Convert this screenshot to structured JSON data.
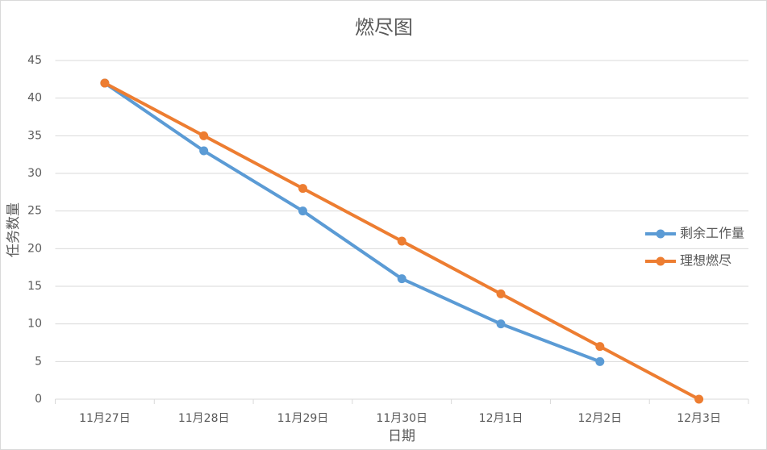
{
  "chart_data": {
    "type": "line",
    "title": "燃尽图",
    "x_label": "日期",
    "y_label": "任务数量",
    "categories": [
      "11月27日",
      "11月28日",
      "11月29日",
      "11月30日",
      "12月1日",
      "12月2日",
      "12月3日"
    ],
    "series": [
      {
        "name": "剩余工作量",
        "color": "#5b9bd5",
        "values": [
          42,
          33,
          25,
          16,
          10,
          5,
          null
        ]
      },
      {
        "name": "理想燃尽",
        "color": "#ed7d31",
        "values": [
          42,
          35,
          28,
          21,
          14,
          7,
          0
        ]
      }
    ],
    "ylim": [
      0,
      45
    ],
    "yticks": [
      0,
      5,
      10,
      15,
      20,
      25,
      30,
      35,
      40,
      45
    ],
    "grid": true,
    "legend": "right"
  }
}
